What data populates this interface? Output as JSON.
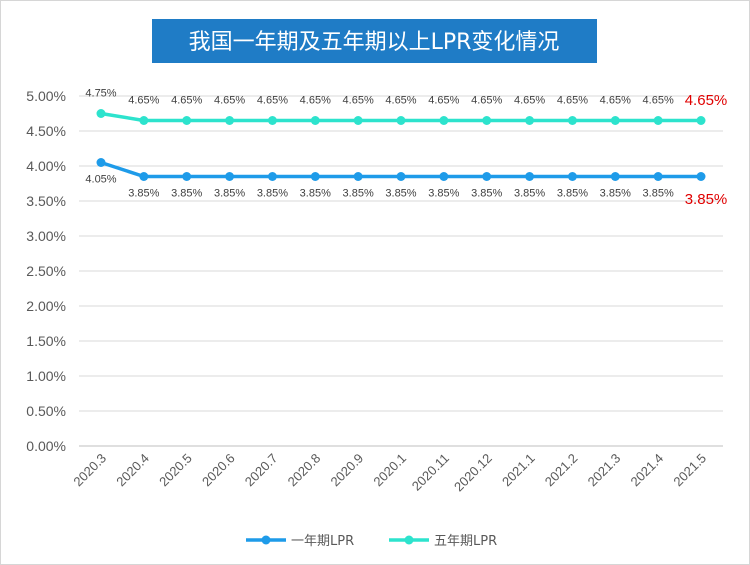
{
  "chart_data": {
    "type": "line",
    "title": "我国一年期及五年期以上LPR变化情况",
    "xlabel": "",
    "ylabel": "",
    "categories": [
      "2020.3",
      "2020.4",
      "2020.5",
      "2020.6",
      "2020.7",
      "2020.8",
      "2020.9",
      "2020.1",
      "2020.11",
      "2020.12",
      "2021.1",
      "2021.2",
      "2021.3",
      "2021.4",
      "2021.5"
    ],
    "ylim": [
      0,
      5
    ],
    "yticks": [
      "0.00%",
      "0.50%",
      "1.00%",
      "1.50%",
      "2.00%",
      "2.50%",
      "3.00%",
      "3.50%",
      "4.00%",
      "4.50%",
      "5.00%"
    ],
    "grid": true,
    "legend_position": "bottom",
    "series": [
      {
        "name": "一年期LPR",
        "color": "#1e9be9",
        "values": [
          4.05,
          3.85,
          3.85,
          3.85,
          3.85,
          3.85,
          3.85,
          3.85,
          3.85,
          3.85,
          3.85,
          3.85,
          3.85,
          3.85,
          3.85
        ],
        "labels": [
          "4.05%",
          "3.85%",
          "3.85%",
          "3.85%",
          "3.85%",
          "3.85%",
          "3.85%",
          "3.85%",
          "3.85%",
          "3.85%",
          "3.85%",
          "3.85%",
          "3.85%",
          "3.85%",
          "3.85%"
        ]
      },
      {
        "name": "五年期LPR",
        "color": "#2de3cd",
        "values": [
          4.75,
          4.65,
          4.65,
          4.65,
          4.65,
          4.65,
          4.65,
          4.65,
          4.65,
          4.65,
          4.65,
          4.65,
          4.65,
          4.65,
          4.65
        ],
        "labels": [
          "4.75%",
          "4.65%",
          "4.65%",
          "4.65%",
          "4.65%",
          "4.65%",
          "4.65%",
          "4.65%",
          "4.65%",
          "4.65%",
          "4.65%",
          "4.65%",
          "4.65%",
          "4.65%",
          "4.65%"
        ]
      }
    ],
    "highlight_color": "#e00000"
  }
}
